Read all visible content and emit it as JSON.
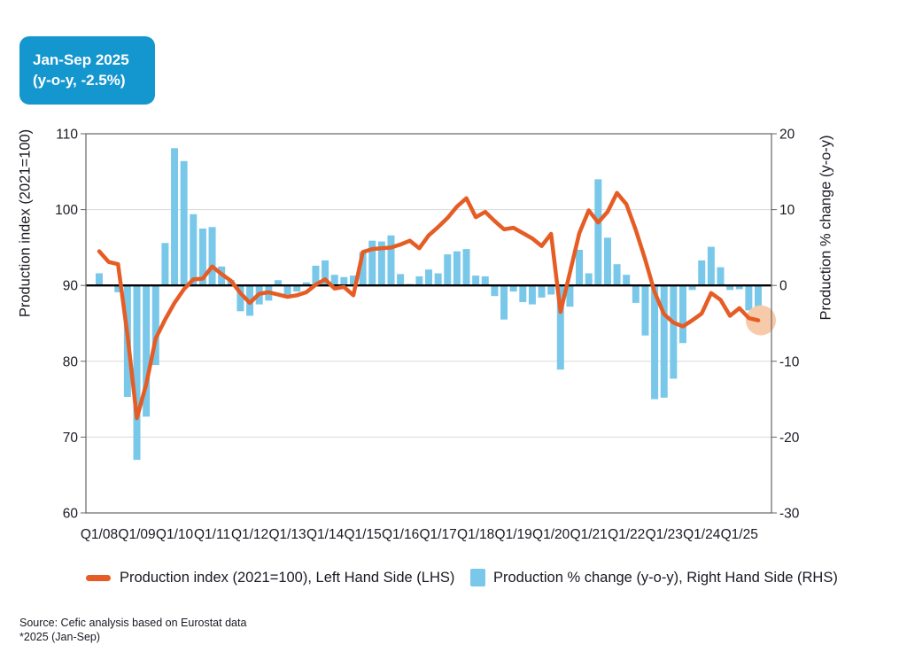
{
  "badge": {
    "line1": "Jan-Sep 2025",
    "line2": "(y-o-y, -2.5%)",
    "bg_color": "#1496CE"
  },
  "chart_data": {
    "type": "combo-bar-line",
    "categories": [
      "Q1/08",
      "Q2/08",
      "Q3/08",
      "Q4/08",
      "Q1/09",
      "Q2/09",
      "Q3/09",
      "Q4/09",
      "Q1/10",
      "Q2/10",
      "Q3/10",
      "Q4/10",
      "Q1/11",
      "Q2/11",
      "Q3/11",
      "Q4/11",
      "Q1/12",
      "Q2/12",
      "Q3/12",
      "Q4/12",
      "Q1/13",
      "Q2/13",
      "Q3/13",
      "Q4/13",
      "Q1/14",
      "Q2/14",
      "Q3/14",
      "Q4/14",
      "Q1/15",
      "Q2/15",
      "Q3/15",
      "Q4/15",
      "Q1/16",
      "Q2/16",
      "Q3/16",
      "Q4/16",
      "Q1/17",
      "Q2/17",
      "Q3/17",
      "Q4/17",
      "Q1/18",
      "Q2/18",
      "Q3/18",
      "Q4/18",
      "Q1/19",
      "Q2/19",
      "Q3/19",
      "Q4/19",
      "Q1/20",
      "Q2/20",
      "Q3/20",
      "Q4/20",
      "Q1/21",
      "Q2/21",
      "Q3/21",
      "Q4/21",
      "Q1/22",
      "Q2/22",
      "Q3/22",
      "Q4/22",
      "Q1/23",
      "Q2/23",
      "Q3/23",
      "Q4/23",
      "Q1/24",
      "Q2/24",
      "Q3/24",
      "Q4/24",
      "Q1/25",
      "Q2/25",
      "Q3/25"
    ],
    "x_tick_labels": [
      "Q1/08",
      "Q1/09",
      "Q1/10",
      "Q1/11",
      "Q1/12",
      "Q1/13",
      "Q1/14",
      "Q1/15",
      "Q1/16",
      "Q1/17",
      "Q1/18",
      "Q1/19",
      "Q1/20",
      "Q1/21",
      "Q1/22",
      "Q1/23",
      "Q1/24",
      "Q1/25"
    ],
    "series": [
      {
        "name": "Production index (2021=100), Left Hand Side (LHS)",
        "type": "line",
        "axis": "left",
        "color": "#E65C25",
        "values": [
          94.5,
          93.1,
          92.8,
          83.5,
          72.5,
          77.0,
          83.0,
          85.5,
          87.7,
          89.5,
          90.8,
          90.9,
          92.5,
          91.5,
          90.6,
          89.0,
          87.7,
          88.9,
          89.1,
          88.8,
          88.5,
          88.7,
          89.1,
          90.1,
          90.8,
          89.6,
          89.8,
          88.7,
          94.4,
          94.8,
          94.9,
          95.0,
          95.4,
          95.9,
          94.9,
          96.6,
          97.7,
          98.9,
          100.4,
          101.5,
          99.0,
          99.7,
          98.5,
          97.4,
          97.6,
          96.9,
          96.2,
          95.2,
          96.8,
          86.5,
          91.7,
          96.9,
          99.9,
          98.3,
          99.7,
          102.2,
          100.7,
          97.3,
          93.4,
          89.1,
          86.2,
          85.1,
          84.6,
          85.4,
          86.3,
          89.0,
          88.1,
          86.0,
          87.0,
          85.7,
          85.4
        ]
      },
      {
        "name": "Production % change (y-o-y), Right Hand Side (RHS)",
        "type": "bar",
        "axis": "right",
        "color": "#7AC8E9",
        "values": [
          1.6,
          0.0,
          -0.9,
          -14.7,
          -23.0,
          -17.3,
          -10.5,
          5.6,
          18.1,
          16.4,
          9.4,
          7.5,
          7.7,
          2.5,
          0.7,
          -3.4,
          -4.0,
          -2.5,
          -2.0,
          0.7,
          -1.2,
          -0.8,
          0.4,
          2.6,
          3.3,
          1.4,
          1.1,
          1.3,
          4.4,
          5.9,
          5.8,
          6.6,
          1.5,
          0.2,
          1.2,
          2.1,
          1.6,
          4.1,
          4.5,
          4.8,
          1.3,
          1.2,
          -1.4,
          -4.5,
          -0.8,
          -2.2,
          -2.5,
          -1.6,
          -1.2,
          -11.1,
          -2.8,
          4.7,
          1.6,
          14.0,
          6.3,
          2.8,
          1.4,
          -2.3,
          -6.6,
          -15.0,
          -14.8,
          -12.3,
          -7.6,
          -0.6,
          3.3,
          5.1,
          2.4,
          -0.6,
          -0.5,
          -3.3,
          -3.5
        ]
      }
    ],
    "left_axis": {
      "title": "Production index (2021=100)",
      "min": 60,
      "max": 110,
      "ticks": [
        60,
        70,
        80,
        90,
        100,
        110
      ]
    },
    "right_axis": {
      "title": "Production % change (y-o-y)",
      "min": -30,
      "max": 20,
      "ticks": [
        -30,
        -20,
        -10,
        0,
        10,
        20
      ]
    },
    "zero_line": true,
    "grid": true,
    "legend_position": "bottom",
    "highlight": {
      "type": "circle",
      "at_index": 70,
      "color": "#F7CBAA"
    }
  },
  "legend": [
    {
      "label": "Production index (2021=100), Left Hand Side (LHS)",
      "color": "#E65C25",
      "shape": "dash"
    },
    {
      "label": "Production % change (y-o-y), Right Hand Side (RHS)",
      "color": "#7AC8E9",
      "shape": "square"
    }
  ],
  "footer": {
    "source": "Source: Cefic analysis based on Eurostat data",
    "note": "*2025 (Jan-Sep)"
  },
  "colors": {
    "text": "#191923",
    "grid": "#D8D8D8",
    "plot_border": "#666666",
    "zero_line": "#000000"
  }
}
